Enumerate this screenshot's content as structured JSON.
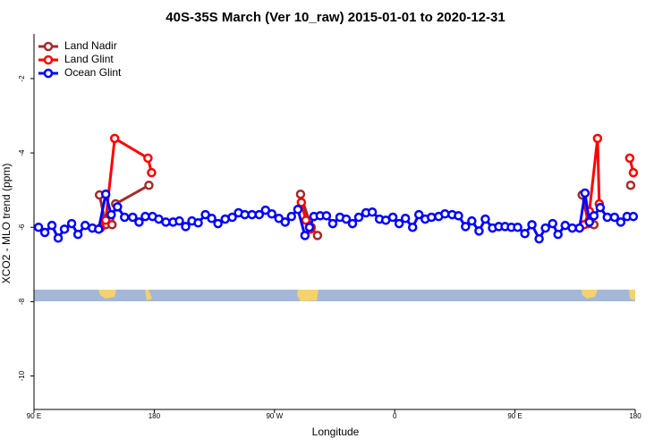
{
  "chart_data": {
    "type": "line",
    "title": "40S-35S March (Ver 10_raw)   2015-01-01 to 2020-12-31",
    "x_label": "Longitude",
    "y_label": "XCO2 - MLO trend (ppm)",
    "xlim": [
      90,
      540
    ],
    "ylim": [
      -10.9,
      -0.8
    ],
    "xticks": [
      {
        "value": 90,
        "label": "90 E"
      },
      180,
      {
        "value": 270,
        "label": "90 W"
      },
      {
        "value": 360,
        "label": "0"
      },
      {
        "value": 450,
        "label": "90 E"
      },
      {
        "value": 540,
        "label": "180"
      }
    ],
    "yticks": [
      -2,
      -4,
      -6,
      -8,
      -10
    ],
    "legend": "top-left",
    "series": [
      {
        "name": "Land Nadir",
        "color": "#a52a2a",
        "x": [
          139,
          143.7,
          148.4,
          151.1,
          176,
          null,
          289.5,
          297.5,
          302.2,
          null,
          500.3,
          505,
          509.1,
          null,
          536.6
        ],
        "values": [
          -5.13,
          -5.93,
          -5.93,
          -5.37,
          -4.87,
          null,
          -5.11,
          -6.0,
          -6.22,
          null,
          -5.13,
          -5.9,
          -5.93,
          null,
          -4.87
        ]
      },
      {
        "name": "Land Glint",
        "color": "#ff0000",
        "x": [
          139.7,
          143.7,
          150.4,
          175.3,
          178,
          null,
          290.1,
          293.5,
          296.9,
          null,
          501.7,
          505.7,
          511.8,
          513.1,
          null,
          535.9,
          538.6
        ],
        "values": [
          -6.02,
          -5.81,
          -3.61,
          -4.14,
          -4.53,
          null,
          -5.33,
          -5.81,
          -6.05,
          null,
          -5.93,
          -5.57,
          -3.61,
          -5.37,
          null,
          -4.14,
          -4.53
        ]
      },
      {
        "name": "Ocean Glint",
        "color": "#0000ff",
        "x": [
          93.4,
          98.1,
          103.4,
          108.1,
          112.8,
          118.2,
          122.9,
          128.3,
          133.7,
          138.4,
          143.7,
          147.8,
          152.5,
          157.8,
          163.9,
          168.6,
          173.3,
          178.7,
          183.4,
          188.7,
          194.1,
          198.8,
          203.5,
          208.2,
          212.9,
          218.3,
          223,
          227.7,
          233.1,
          238.4,
          243.1,
          247.8,
          253.2,
          258.6,
          263.3,
          268,
          273.3,
          278,
          282.7,
          287.5,
          292.8,
          296.2,
          299.5,
          304.2,
          308.9,
          313.6,
          319,
          323.7,
          328.4,
          333.1,
          338.5,
          343.2,
          348.6,
          353.3,
          358.6,
          363.3,
          368,
          373.4,
          378.1,
          382.8,
          387.5,
          392.9,
          397.6,
          403,
          407.7,
          413,
          417.7,
          423.1,
          427.8,
          433.2,
          437.9,
          442.6,
          447.3,
          452,
          457.4,
          462.7,
          468.1,
          472.8,
          478.2,
          482.2,
          487.6,
          492.9,
          498.3,
          502.4,
          505.7,
          509.1,
          513.8,
          519.1,
          524.5,
          529.2,
          533.9,
          538.6
        ],
        "values": [
          -6.0,
          -6.14,
          -5.95,
          -6.29,
          -6.05,
          -5.9,
          -6.19,
          -5.95,
          -6.02,
          -6.05,
          -5.11,
          -5.66,
          -5.45,
          -5.73,
          -5.73,
          -5.86,
          -5.71,
          -5.71,
          -5.78,
          -5.86,
          -5.86,
          -5.83,
          -5.98,
          -5.83,
          -5.88,
          -5.66,
          -5.76,
          -5.9,
          -5.78,
          -5.73,
          -5.61,
          -5.66,
          -5.66,
          -5.66,
          -5.54,
          -5.64,
          -5.76,
          -5.86,
          -5.71,
          -5.52,
          -6.22,
          -6.0,
          -5.71,
          -5.69,
          -5.69,
          -5.9,
          -5.73,
          -5.78,
          -5.9,
          -5.73,
          -5.61,
          -5.59,
          -5.78,
          -5.81,
          -5.73,
          -5.9,
          -5.76,
          -6.0,
          -5.66,
          -5.78,
          -5.73,
          -5.71,
          -5.64,
          -5.66,
          -5.69,
          -5.98,
          -5.83,
          -6.1,
          -5.78,
          -6.02,
          -5.98,
          -5.98,
          -6.0,
          -6.0,
          -6.17,
          -5.93,
          -6.31,
          -6.02,
          -5.9,
          -6.19,
          -5.95,
          -6.02,
          -6.02,
          -5.08,
          -5.86,
          -5.69,
          -5.47,
          -5.73,
          -5.73,
          -5.86,
          -5.71,
          -5.71
        ]
      }
    ]
  }
}
